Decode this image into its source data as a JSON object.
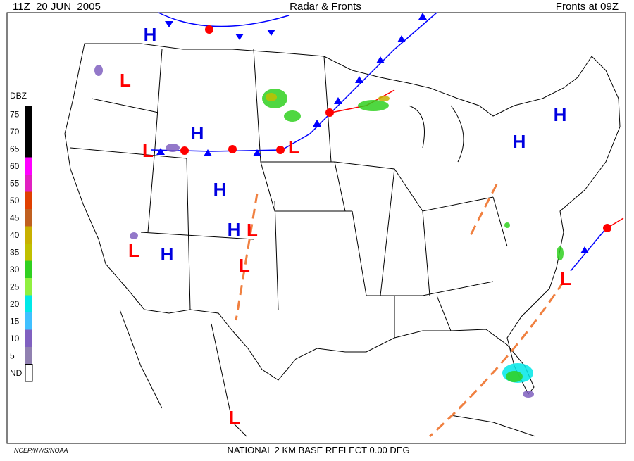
{
  "header": {
    "left": "11Z  20 JUN  2005",
    "center": "Radar & Fronts",
    "right": "Fronts at 09Z"
  },
  "legend": {
    "title": "DBZ",
    "levels": [
      {
        "value": 75,
        "color": "#000000"
      },
      {
        "value": 70,
        "color": "#000000"
      },
      {
        "value": 65,
        "color": "#000000"
      },
      {
        "value": 60,
        "color": "#ff00ff"
      },
      {
        "value": 55,
        "color": "#e020c0"
      },
      {
        "value": 50,
        "color": "#e04000"
      },
      {
        "value": 45,
        "color": "#c06020"
      },
      {
        "value": 40,
        "color": "#c8b000"
      },
      {
        "value": 35,
        "color": "#c0c000"
      },
      {
        "value": 30,
        "color": "#30d020"
      },
      {
        "value": 25,
        "color": "#90f040"
      },
      {
        "value": 20,
        "color": "#00e8e8"
      },
      {
        "value": 15,
        "color": "#40c0ff"
      },
      {
        "value": 10,
        "color": "#8060c0"
      },
      {
        "value": 5,
        "color": "#9080b0"
      },
      {
        "label": "ND",
        "color": "#ffffff"
      }
    ]
  },
  "pressure_centers": [
    "H",
    "L",
    "H",
    "L",
    "L",
    "H",
    "H",
    "L",
    "L",
    "H",
    "L",
    "L",
    "H",
    "H",
    "L"
  ],
  "footer": {
    "credit": "NCEP/NWS/NOAA",
    "product": "NATIONAL 2 KM BASE REFLECT 0.00 DEG"
  }
}
